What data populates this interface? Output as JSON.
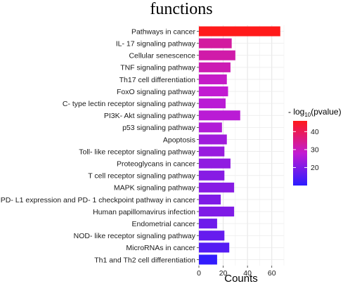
{
  "chart_data": {
    "type": "bar",
    "orientation": "horizontal",
    "title": "functions",
    "xlabel": "Counts",
    "ylabel": "",
    "xlim": [
      0,
      70
    ],
    "x_ticks": [
      0,
      20,
      40,
      60
    ],
    "grid": true,
    "categories": [
      "Pathways in cancer",
      "IL- 17 signaling pathway",
      "Cellular senescence",
      "TNF signaling pathway",
      "Th17 cell differentiation",
      "FoxO signaling pathway",
      "C- type lectin receptor signaling pathway",
      "PI3K- Akt signaling pathway",
      "p53 signaling pathway",
      "Apoptosis",
      "Toll- like receptor signaling pathway",
      "Proteoglycans in cancer",
      "T cell receptor signaling pathway",
      "MAPK signaling pathway",
      "PD- L1 expression and PD- 1 checkpoint pathway in cancer",
      "Human papillomavirus infection",
      "Endometrial cancer",
      "NOD- like receptor signaling pathway",
      "MicroRNAs in cancer",
      "Th1 and Th2 cell differentiation"
    ],
    "values": [
      67,
      27,
      30,
      26,
      23,
      24,
      22,
      34,
      19,
      23,
      21,
      26,
      21,
      29,
      18,
      29,
      15,
      21,
      25,
      15
    ],
    "color_values": [
      46,
      33,
      32,
      31,
      29,
      28,
      27,
      27,
      26,
      24,
      23,
      22,
      21,
      21,
      20,
      20,
      18,
      17,
      15,
      11
    ],
    "colorbar": {
      "title": "- log",
      "title_sub": "10",
      "title_suffix": "(pvalue)",
      "range": [
        10,
        46
      ],
      "ticks": [
        20,
        30,
        40
      ],
      "color_low": "#2b1cff",
      "color_high": "#ff1a1a",
      "legend_position": "right"
    }
  }
}
